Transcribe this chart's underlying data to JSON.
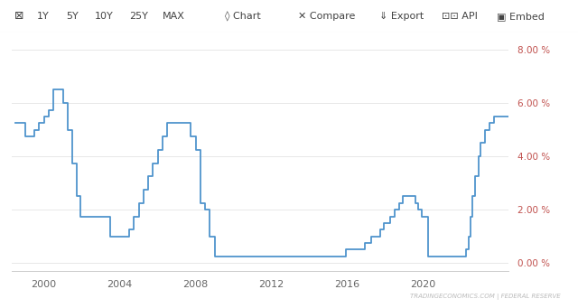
{
  "background_color": "#ffffff",
  "plot_bg_color": "#ffffff",
  "toolbar_bg": "#f5f5f5",
  "toolbar_border": "#dddddd",
  "line_color": "#4f94cd",
  "line_width": 1.3,
  "watermark": "TRADINGECONOMICS.COM | FEDERAL RESERVE",
  "watermark_color": "#bbbbbb",
  "grid_color": "#e8e8e8",
  "ytick_color": "#c0504d",
  "xtick_color": "#666666",
  "toolbar_color": "#444444",
  "ylim": [
    -0.3,
    8.6
  ],
  "yticks": [
    0.0,
    2.0,
    4.0,
    6.0,
    8.0
  ],
  "xlim_start": 1998.3,
  "xlim_end": 2024.5,
  "xticks": [
    2000,
    2004,
    2008,
    2012,
    2016,
    2020
  ],
  "toolbar_items": [
    [
      0.025,
      "left",
      9,
      "⊠"
    ],
    [
      0.075,
      "center",
      8,
      "1Y"
    ],
    [
      0.125,
      "center",
      8,
      "5Y"
    ],
    [
      0.18,
      "center",
      8,
      "10Y"
    ],
    [
      0.24,
      "center",
      8,
      "25Y"
    ],
    [
      0.3,
      "center",
      8,
      "MAX"
    ],
    [
      0.42,
      "center",
      8,
      "◊ Chart"
    ],
    [
      0.565,
      "center",
      8,
      "✕ Compare"
    ],
    [
      0.695,
      "center",
      8,
      "⇓ Export"
    ],
    [
      0.795,
      "center",
      8,
      "⊡⊡ API"
    ],
    [
      0.9,
      "center",
      8,
      "▣ Embed"
    ]
  ],
  "fed_rate_data": [
    [
      1998.5,
      5.25
    ],
    [
      1999.0,
      4.75
    ],
    [
      1999.5,
      5.0
    ],
    [
      1999.75,
      5.25
    ],
    [
      2000.0,
      5.5
    ],
    [
      2000.25,
      5.75
    ],
    [
      2000.5,
      6.5
    ],
    [
      2000.75,
      6.5
    ],
    [
      2001.0,
      6.0
    ],
    [
      2001.25,
      5.0
    ],
    [
      2001.5,
      3.75
    ],
    [
      2001.75,
      2.5
    ],
    [
      2001.917,
      1.75
    ],
    [
      2002.5,
      1.75
    ],
    [
      2003.5,
      1.0
    ],
    [
      2004.25,
      1.0
    ],
    [
      2004.5,
      1.25
    ],
    [
      2004.75,
      1.75
    ],
    [
      2005.0,
      2.25
    ],
    [
      2005.25,
      2.75
    ],
    [
      2005.5,
      3.25
    ],
    [
      2005.75,
      3.75
    ],
    [
      2006.0,
      4.25
    ],
    [
      2006.25,
      4.75
    ],
    [
      2006.5,
      5.25
    ],
    [
      2007.5,
      5.25
    ],
    [
      2007.75,
      4.75
    ],
    [
      2008.0,
      4.25
    ],
    [
      2008.25,
      2.25
    ],
    [
      2008.5,
      2.0
    ],
    [
      2008.75,
      1.0
    ],
    [
      2009.0,
      0.25
    ],
    [
      2015.917,
      0.5
    ],
    [
      2016.917,
      0.75
    ],
    [
      2017.25,
      1.0
    ],
    [
      2017.75,
      1.25
    ],
    [
      2017.917,
      1.5
    ],
    [
      2018.25,
      1.75
    ],
    [
      2018.5,
      2.0
    ],
    [
      2018.75,
      2.25
    ],
    [
      2018.917,
      2.5
    ],
    [
      2019.583,
      2.25
    ],
    [
      2019.75,
      2.0
    ],
    [
      2019.917,
      1.75
    ],
    [
      2020.25,
      0.25
    ],
    [
      2022.25,
      0.5
    ],
    [
      2022.417,
      1.0
    ],
    [
      2022.5,
      1.75
    ],
    [
      2022.583,
      2.5
    ],
    [
      2022.75,
      3.25
    ],
    [
      2022.917,
      4.0
    ],
    [
      2023.0,
      4.5
    ],
    [
      2023.25,
      5.0
    ],
    [
      2023.5,
      5.25
    ],
    [
      2023.75,
      5.5
    ],
    [
      2024.0,
      5.5
    ]
  ]
}
